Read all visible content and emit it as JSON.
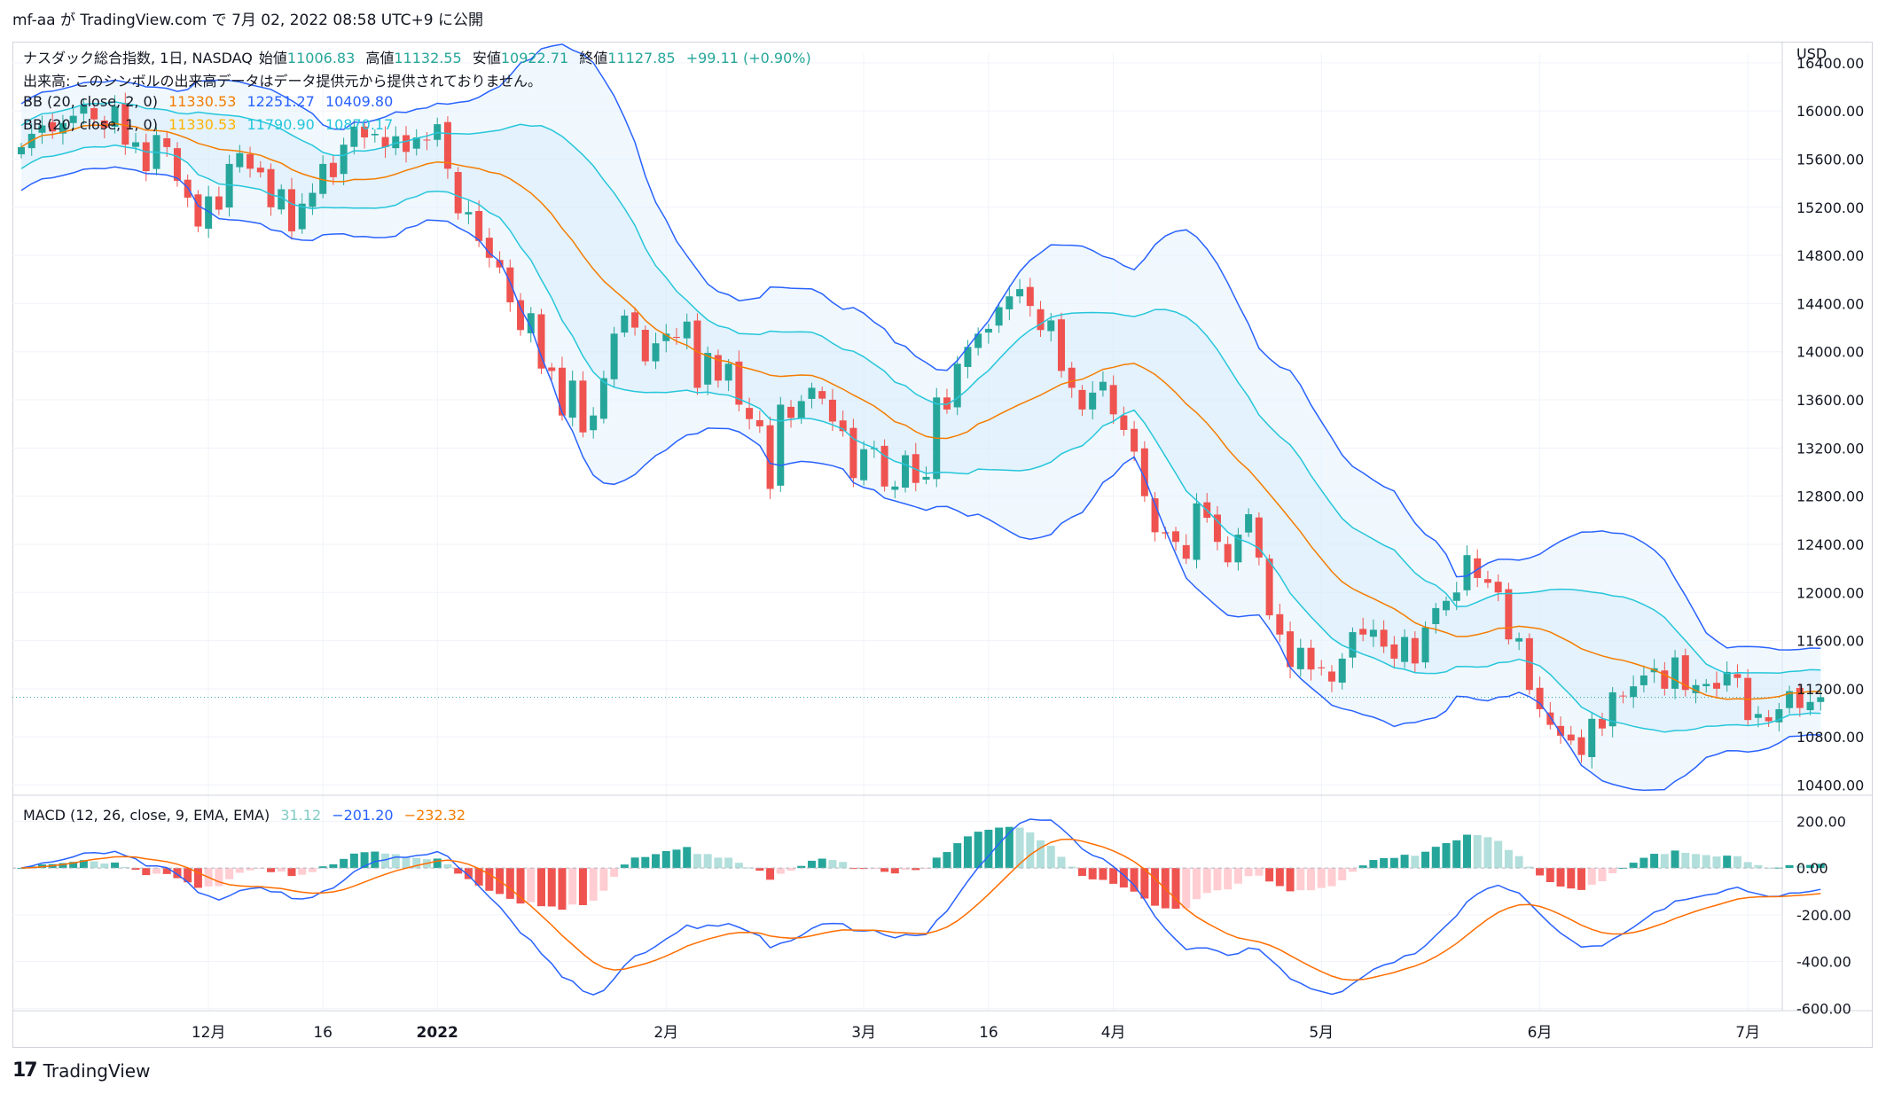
{
  "header": {
    "text": "mf-aa が TradingView.com で 7月 02, 2022 08:58 UTC+9 に公開"
  },
  "legend": {
    "symbol": "ナスダック総合指数, 1日, NASDAQ",
    "open_label": "始値",
    "open": "11006.83",
    "high_label": "高値",
    "high": "11132.55",
    "low_label": "安値",
    "low": "10922.71",
    "close_label": "終値",
    "close": "11127.85",
    "change": "+99.11 (+0.90%)",
    "volume_note": "出来高: このシンボルの出来高データはデータ提供元から提供されておりません。",
    "bb1_label": "BB (20, close, 2, 0)",
    "bb1_basis": "11330.53",
    "bb1_upper": "12251.27",
    "bb1_lower": "10409.80",
    "bb2_label": "BB (20, close, 1, 0)",
    "bb2_basis": "11330.53",
    "bb2_upper": "11790.90",
    "bb2_lower": "10870.17",
    "macd_label": "MACD (12, 26, close, 9, EMA, EMA)",
    "macd_hist": "31.12",
    "macd_line": "−201.20",
    "macd_signal": "−232.32"
  },
  "footer": {
    "brand": "TradingView",
    "logo": "17"
  },
  "colors": {
    "up": "#26a69a",
    "down": "#ef5350",
    "bb_outer": "#2962ff",
    "bb_inner": "#26c6da",
    "bb_basis": "#f57c00",
    "bb_fill": "#e3f2fd",
    "macd": "#2962ff",
    "signal": "#ff6d00",
    "hist_pos_rising": "#26a69a",
    "hist_pos_falling": "#b2dfdb",
    "hist_neg_falling": "#ef5350",
    "hist_neg_rising": "#ffcdd2"
  },
  "chart_data": {
    "type": "candlestick",
    "currency": "USD",
    "price_axis": {
      "ticks": [
        "16400.00",
        "16000.00",
        "15600.00",
        "15200.00",
        "14800.00",
        "14400.00",
        "14000.00",
        "13600.00",
        "13200.00",
        "12800.00",
        "12400.00",
        "12000.00",
        "11600.00",
        "11200.00",
        "10800.00",
        "10400.00"
      ],
      "range": [
        10330,
        16480
      ]
    },
    "macd_axis": {
      "ticks": [
        "200.00",
        "0.00",
        "-200.00",
        "-400.00",
        "-600.00"
      ],
      "range": [
        -610,
        300
      ]
    },
    "x_labels": [
      {
        "text": "12月",
        "i": 18
      },
      {
        "text": "16",
        "i": 29
      },
      {
        "text": "2022",
        "i": 40
      },
      {
        "text": "2月",
        "i": 62
      },
      {
        "text": "3月",
        "i": 81
      },
      {
        "text": "16",
        "i": 93
      },
      {
        "text": "4月",
        "i": 105
      },
      {
        "text": "5月",
        "i": 125
      },
      {
        "text": "6月",
        "i": 146
      },
      {
        "text": "7月",
        "i": 166
      }
    ],
    "last_price": 11127.85,
    "closes": [
      15700,
      15810,
      15880,
      15830,
      15900,
      15960,
      16050,
      15930,
      15860,
      16040,
      15720,
      15740,
      15500,
      15800,
      15700,
      15420,
      15280,
      15040,
      15290,
      15180,
      15560,
      15650,
      15520,
      15490,
      15200,
      15350,
      15000,
      15230,
      15320,
      15560,
      15450,
      15720,
      15870,
      15780,
      15810,
      15700,
      15790,
      15660,
      15780,
      15760,
      15890,
      15520,
      15150,
      15160,
      14920,
      14780,
      14700,
      14410,
      14180,
      14320,
      13860,
      13840,
      13470,
      13760,
      13330,
      13470,
      13780,
      14150,
      14300,
      14200,
      13920,
      14070,
      14150,
      14120,
      14250,
      13700,
      13990,
      13760,
      13900,
      13560,
      13440,
      13380,
      12860,
      13560,
      13450,
      13590,
      13700,
      13610,
      13420,
      13340,
      12950,
      13190,
      13200,
      12880,
      12880,
      13140,
      12910,
      12960,
      13620,
      13520,
      13900,
      14040,
      14150,
      14190,
      14370,
      14460,
      14520,
      14380,
      14180,
      14260,
      13840,
      13700,
      13520,
      13660,
      13750,
      13480,
      13350,
      13170,
      12800,
      12500,
      12490,
      12420,
      12280,
      12740,
      12620,
      12420,
      12250,
      12480,
      12650,
      12290,
      11810,
      11650,
      11380,
      11540,
      11360,
      11370,
      11260,
      11450,
      11670,
      11650,
      11690,
      11550,
      11450,
      11630,
      11410,
      11710,
      11870,
      11930,
      12000,
      12310,
      12120,
      12080,
      12000,
      11610,
      11620,
      11190,
      11030,
      10900,
      10810,
      10770,
      10650,
      10950,
      10870,
      11170,
      11140,
      11220,
      11310,
      11370,
      11200,
      11460,
      11190,
      11230,
      11240,
      11200,
      11340,
      11290,
      10940,
      10990,
      10930,
      11030,
      11180,
      11040,
      11090,
      11130
    ],
    "series": [
      {
        "name": "BB (20, close, 2, 0)"
      },
      {
        "name": "BB (20, close, 1, 0)"
      },
      {
        "name": "MACD (12, 26, close, 9, EMA, EMA)"
      }
    ]
  }
}
